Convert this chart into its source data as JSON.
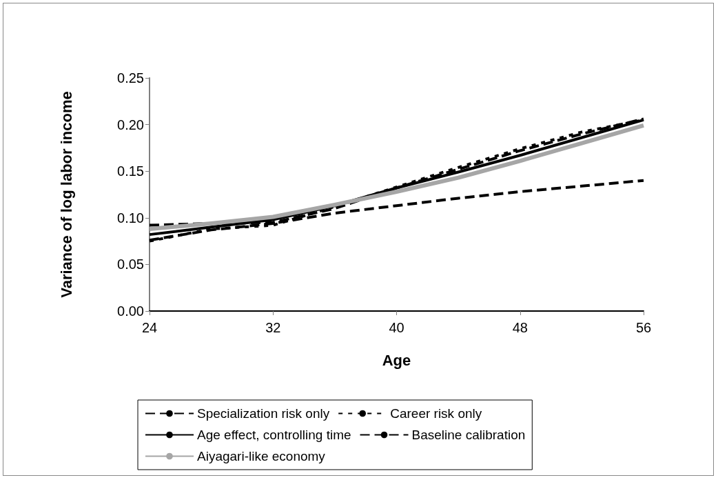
{
  "chart_data": {
    "type": "line",
    "xlabel": "Age",
    "ylabel": "Variance of log labor income",
    "x": [
      24,
      28,
      32,
      36,
      40,
      44,
      48,
      52,
      56
    ],
    "xlim": [
      24,
      56
    ],
    "xticks": [
      24,
      32,
      40,
      48,
      56
    ],
    "ylim": [
      0,
      0.25
    ],
    "yticks": [
      {
        "value": 0,
        "label": "0.00"
      },
      {
        "value": 0.05,
        "label": "0.05"
      },
      {
        "value": 0.1,
        "label": "0.10"
      },
      {
        "value": 0.15,
        "label": "0.15"
      },
      {
        "value": 0.2,
        "label": "0.20"
      },
      {
        "value": 0.25,
        "label": "0.25"
      }
    ],
    "grid": false,
    "legend": "bottom",
    "marker": "none",
    "series": [
      {
        "name": "Specialization risk only",
        "color": "#000000",
        "line_style": "dashed",
        "values": [
          0.076,
          0.087,
          0.094,
          0.105,
          0.113,
          0.121,
          0.128,
          0.134,
          0.14
        ]
      },
      {
        "name": "Career risk only",
        "color": "#000000",
        "line_style": "dotted",
        "values": [
          0.075,
          0.088,
          0.092,
          0.112,
          0.133,
          0.154,
          0.174,
          0.192,
          0.205
        ]
      },
      {
        "name": "Age effect, controlling time",
        "color": "#000000",
        "line_style": "solid",
        "values": [
          0.082,
          0.09,
          0.098,
          0.113,
          0.132,
          0.149,
          0.167,
          0.186,
          0.205
        ]
      },
      {
        "name": "Baseline calibration",
        "color": "#000000",
        "line_style": "dashed",
        "values": [
          0.092,
          0.094,
          0.095,
          0.11,
          0.132,
          0.152,
          0.172,
          0.19,
          0.206
        ]
      },
      {
        "name": "Aiyagari-like economy",
        "color": "#a6a6a6",
        "line_style": "solid",
        "values": [
          0.088,
          0.094,
          0.101,
          0.114,
          0.128,
          0.143,
          0.161,
          0.18,
          0.199
        ]
      }
    ]
  }
}
